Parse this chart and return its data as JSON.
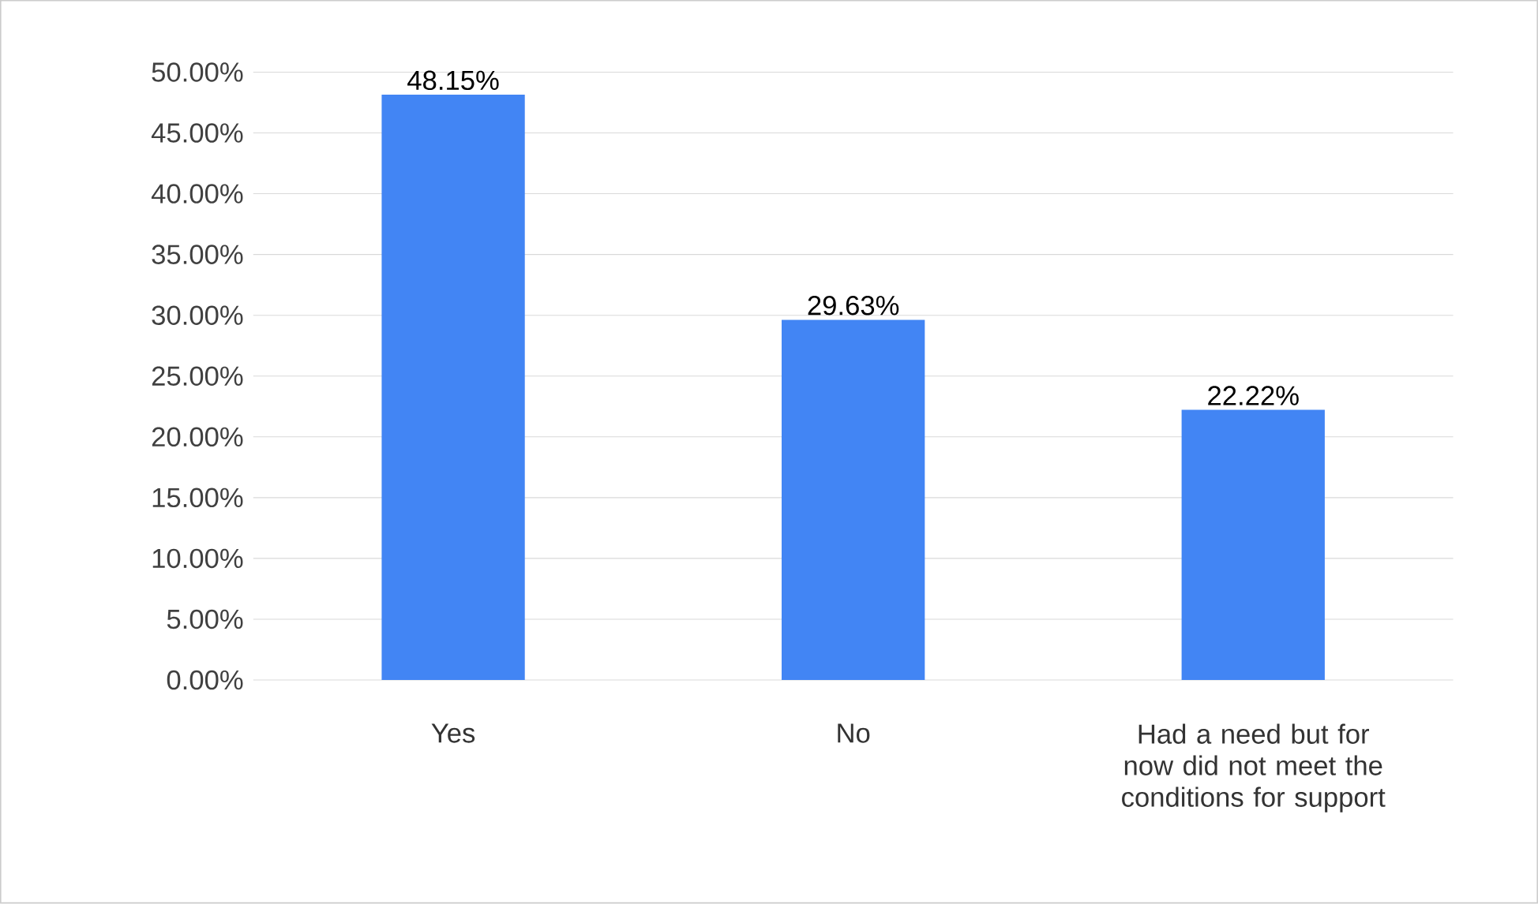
{
  "chart_data": {
    "type": "bar",
    "categories": [
      "Yes",
      "No",
      "Had a need but for now did not meet the conditions for support"
    ],
    "values": [
      48.15,
      29.63,
      22.22
    ],
    "value_labels": [
      "48.15%",
      "29.63%",
      "22.22%"
    ],
    "color": "#4285f4",
    "ylim": [
      0,
      50
    ],
    "yticks": [
      {
        "value": 0,
        "label": "0.00%"
      },
      {
        "value": 5,
        "label": "5.00%"
      },
      {
        "value": 10,
        "label": "10.00%"
      },
      {
        "value": 15,
        "label": "15.00%"
      },
      {
        "value": 20,
        "label": "20.00%"
      },
      {
        "value": 25,
        "label": "25.00%"
      },
      {
        "value": 30,
        "label": "30.00%"
      },
      {
        "value": 35,
        "label": "35.00%"
      },
      {
        "value": 40,
        "label": "40.00%"
      },
      {
        "value": 45,
        "label": "45.00%"
      },
      {
        "value": 50,
        "label": "50.00%"
      }
    ],
    "grid": "y"
  }
}
